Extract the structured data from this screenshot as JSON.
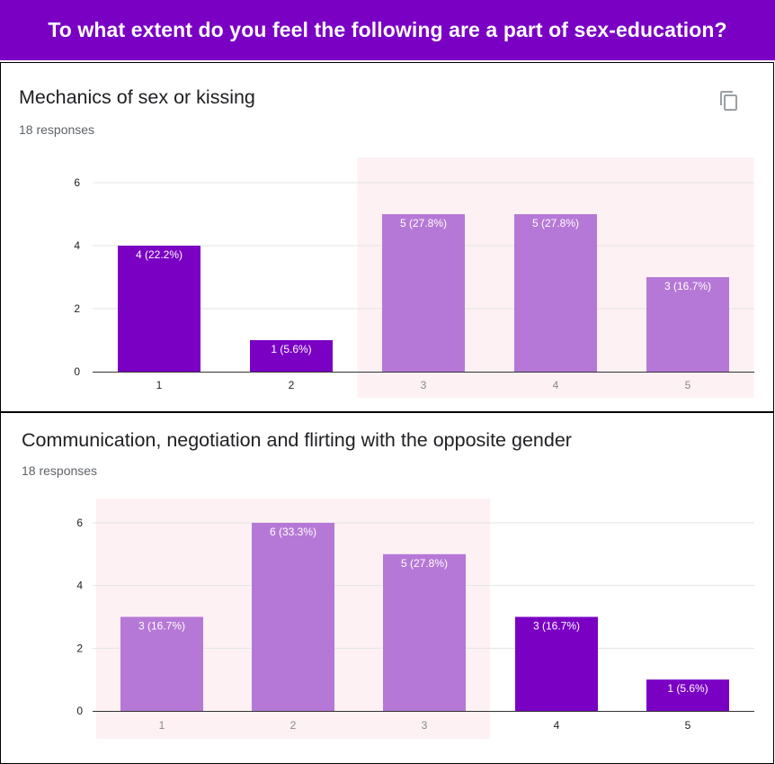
{
  "header": {
    "title": "To what extent do you feel the following are a part of sex-education?"
  },
  "colors": {
    "banner": "#7a00c4",
    "bar_dark": "#7a00c4",
    "bar_light": "#b678d6",
    "highlight_bg": "#fdf1f3"
  },
  "icons": {
    "copy": "copy-icon"
  },
  "questions": [
    {
      "title": "Mechanics of sex or kissing",
      "responses": "18 responses"
    },
    {
      "title": "Communication, negotiation and flirting with the opposite gender",
      "responses": "18 responses"
    }
  ],
  "chart_data": [
    {
      "type": "bar",
      "title": "Mechanics of sex or kissing",
      "categories": [
        "1",
        "2",
        "3",
        "4",
        "5"
      ],
      "values": [
        4,
        1,
        5,
        5,
        3
      ],
      "labels": [
        "4 (22.2%)",
        "1 (5.6%)",
        "5 (27.8%)",
        "5 (27.8%)",
        "3 (16.7%)"
      ],
      "highlighted": [
        false,
        false,
        true,
        true,
        true
      ],
      "yticks": [
        "0",
        "2",
        "4",
        "6"
      ],
      "ylim": [
        0,
        6
      ],
      "grid": true
    },
    {
      "type": "bar",
      "title": "Communication, negotiation and flirting with the opposite gender",
      "categories": [
        "1",
        "2",
        "3",
        "4",
        "5"
      ],
      "values": [
        3,
        6,
        5,
        3,
        1
      ],
      "labels": [
        "3 (16.7%)",
        "6 (33.3%)",
        "5 (27.8%)",
        "3 (16.7%)",
        "1 (5.6%)"
      ],
      "highlighted": [
        true,
        true,
        true,
        false,
        false
      ],
      "yticks": [
        "0",
        "2",
        "4",
        "6"
      ],
      "ylim": [
        0,
        6
      ],
      "grid": true
    }
  ]
}
